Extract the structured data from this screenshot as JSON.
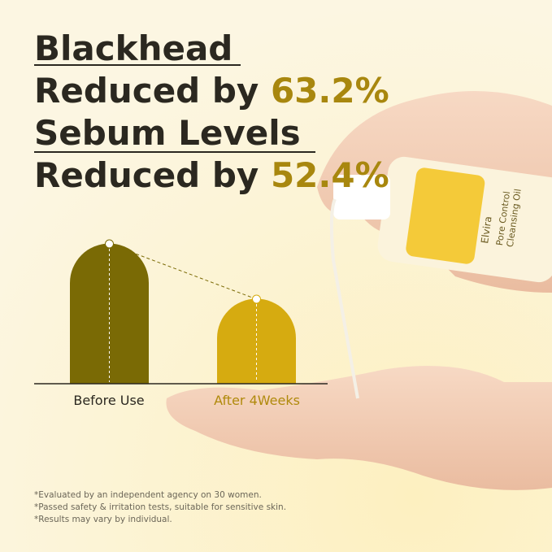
{
  "headline": {
    "line1": "Blackhead",
    "line2_prefix": "Reduced by",
    "line2_value": "63.2%",
    "line3": "Sebum Levels",
    "line4_prefix": "Reduced by",
    "line4_value": "52.4%"
  },
  "comparison": {
    "labels": [
      "Before Use",
      "After 4Weeks"
    ]
  },
  "product": {
    "brand": "Elvira",
    "name_line1": "Pore Control",
    "name_line2": "Cleansing Oil"
  },
  "footnotes": [
    "*Evaluated by an independent agency on 30 women.",
    "*Passed safety & irritation tests, suitable for sensitive skin.",
    "*Results may vary by individual."
  ]
}
